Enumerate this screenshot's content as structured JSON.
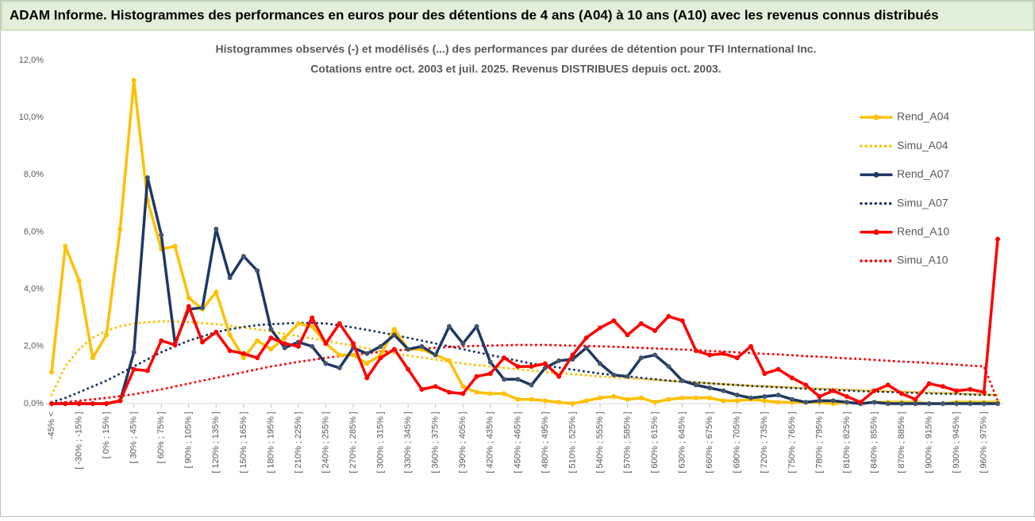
{
  "header": {
    "title": "ADAM Informe. Histogrammes des performances en euros pour des détentions de 4 ans (A04) à 10 ans (A10) avec les revenus connus distribués"
  },
  "chart_data": {
    "type": "line",
    "title": "Histogrammes observés (-) et modélisés (...) des performances par durées de détention pour TFI International Inc.",
    "subtitle": "Cotations entre oct. 2003 et juil. 2025. Revenus DISTRIBUES depuis oct. 2003.",
    "categories": [
      "-45% <",
      null,
      "[ -30% ; -15% ]",
      null,
      "[ 0% ; 15% ]",
      null,
      "[ 30% ; 45% ]",
      null,
      "[ 60% ; 75% ]",
      null,
      "[ 90% ; 105% ]",
      null,
      "[ 120% ; 135% ]",
      null,
      "[ 150% ; 165% ]",
      null,
      "[ 180% ; 195% ]",
      null,
      "[ 210% ; 225% ]",
      null,
      "[ 240% ; 255% ]",
      null,
      "[ 270% ; 285% ]",
      null,
      "[ 300% ; 315% ]",
      null,
      "[ 330% ; 345% ]",
      null,
      "[ 360% ; 375% ]",
      null,
      "[ 390% ; 405% ]",
      null,
      "[ 420% ; 435% ]",
      null,
      "[ 450% ; 465% ]",
      null,
      "[ 480% ; 495% ]",
      null,
      "[ 510% ; 525% ]",
      null,
      "[ 540% ; 555% ]",
      null,
      "[ 570% ; 585% ]",
      null,
      "[ 600% ; 615% ]",
      null,
      "[ 630% ; 645% ]",
      null,
      "[ 660% ; 675% ]",
      null,
      "[ 690% ; 705% ]",
      null,
      "[ 720% ; 735% ]",
      null,
      "[ 750% ; 765% ]",
      null,
      "[ 780% ; 795% ]",
      null,
      "[ 810% ; 825% ]",
      null,
      "[ 840% ; 855% ]",
      null,
      "[ 870% ; 885% ]",
      null,
      "[ 900% ; 915% ]",
      null,
      "[ 930% ; 945% ]",
      null,
      "[ 960% ; 975% ]",
      null
    ],
    "series": [
      {
        "name": "Rend_A04",
        "color": "#ffc000",
        "style": "solid",
        "markers": true,
        "values": [
          1.1,
          5.5,
          4.3,
          1.6,
          2.4,
          6.1,
          11.3,
          7.1,
          5.4,
          5.5,
          3.7,
          3.3,
          3.9,
          2.4,
          1.6,
          2.2,
          1.9,
          2.3,
          2.8,
          2.7,
          2.1,
          1.7,
          1.7,
          1.4,
          1.7,
          2.6,
          1.9,
          1.9,
          1.7,
          1.5,
          0.6,
          0.4,
          0.35,
          0.35,
          0.15,
          0.15,
          0.1,
          0.05,
          0,
          0.1,
          0.2,
          0.25,
          0.15,
          0.2,
          0.05,
          0.15,
          0.2,
          0.2,
          0.2,
          0.1,
          0.1,
          0.15,
          0.1,
          0.05,
          0.05,
          0.05,
          0.05,
          0,
          0.05,
          0,
          0.05,
          0.05,
          0.05,
          0.05,
          0,
          0,
          0.05,
          0.05,
          0.05,
          0.05
        ]
      },
      {
        "name": "Simu_A04",
        "color": "#ffc000",
        "style": "dotted",
        "markers": false,
        "values": [
          0.3,
          1.3,
          1.9,
          2.3,
          2.55,
          2.7,
          2.8,
          2.85,
          2.87,
          2.87,
          2.85,
          2.82,
          2.78,
          2.72,
          2.66,
          2.6,
          2.52,
          2.44,
          2.36,
          2.28,
          2.2,
          2.11,
          2.02,
          1.93,
          1.84,
          1.75,
          1.68,
          1.61,
          1.54,
          1.47,
          1.4,
          1.35,
          1.3,
          1.25,
          1.2,
          1.15,
          1.11,
          1.07,
          1.03,
          0.99,
          0.95,
          0.92,
          0.89,
          0.86,
          0.83,
          0.8,
          0.77,
          0.74,
          0.71,
          0.68,
          0.65,
          0.63,
          0.61,
          0.59,
          0.57,
          0.55,
          0.53,
          0.51,
          0.49,
          0.47,
          0.45,
          0.44,
          0.42,
          0.41,
          0.39,
          0.38,
          0.36,
          0.34,
          0.32,
          0.3
        ]
      },
      {
        "name": "Rend_A07",
        "color": "#1f3864",
        "style": "solid",
        "markers": true,
        "values": [
          0,
          0,
          0,
          0,
          0,
          0.1,
          1.8,
          7.9,
          5.9,
          2.1,
          3.3,
          3.35,
          6.1,
          4.4,
          5.15,
          4.65,
          2.6,
          1.95,
          2.15,
          2.0,
          1.4,
          1.25,
          1.95,
          1.75,
          2.0,
          2.4,
          1.9,
          2.0,
          1.7,
          2.7,
          2.1,
          2.7,
          1.45,
          0.85,
          0.85,
          0.65,
          1.25,
          1.5,
          1.55,
          1.95,
          1.4,
          1.0,
          0.95,
          1.6,
          1.7,
          1.3,
          0.8,
          0.65,
          0.55,
          0.45,
          0.3,
          0.2,
          0.25,
          0.3,
          0.15,
          0.05,
          0.1,
          0.1,
          0.05,
          0,
          0.05,
          0,
          0,
          0,
          0,
          0,
          0,
          0,
          0,
          0
        ]
      },
      {
        "name": "Simu_A07",
        "color": "#1f3864",
        "style": "dotted",
        "markers": false,
        "values": [
          0.05,
          0.2,
          0.4,
          0.6,
          0.8,
          1.05,
          1.3,
          1.55,
          1.8,
          2.0,
          2.2,
          2.35,
          2.5,
          2.6,
          2.68,
          2.74,
          2.78,
          2.8,
          2.82,
          2.82,
          2.8,
          2.74,
          2.66,
          2.58,
          2.49,
          2.4,
          2.3,
          2.2,
          2.1,
          2.0,
          1.9,
          1.8,
          1.7,
          1.6,
          1.5,
          1.4,
          1.33,
          1.26,
          1.19,
          1.12,
          1.05,
          1.0,
          0.95,
          0.9,
          0.85,
          0.8,
          0.77,
          0.74,
          0.71,
          0.68,
          0.65,
          0.62,
          0.6,
          0.57,
          0.55,
          0.52,
          0.5,
          0.48,
          0.46,
          0.44,
          0.42,
          0.41,
          0.39,
          0.38,
          0.36,
          0.35,
          0.34,
          0.32,
          0.31,
          0.3
        ]
      },
      {
        "name": "Rend_A10",
        "color": "#ff0000",
        "style": "solid",
        "markers": true,
        "values": [
          0,
          0,
          0,
          0,
          0,
          0.1,
          1.2,
          1.15,
          2.2,
          2.05,
          3.4,
          2.15,
          2.5,
          1.85,
          1.75,
          1.6,
          2.3,
          2.1,
          2.0,
          3.0,
          2.1,
          2.8,
          2.1,
          0.9,
          1.6,
          1.9,
          1.2,
          0.5,
          0.6,
          0.4,
          0.35,
          0.95,
          1.05,
          1.6,
          1.3,
          1.3,
          1.4,
          0.95,
          1.7,
          2.3,
          2.65,
          2.9,
          2.4,
          2.8,
          2.55,
          3.05,
          2.9,
          1.85,
          1.7,
          1.75,
          1.6,
          2.0,
          1.05,
          1.2,
          0.9,
          0.65,
          0.25,
          0.45,
          0.25,
          0.05,
          0.45,
          0.65,
          0.35,
          0.15,
          0.7,
          0.6,
          0.45,
          0.5,
          0.4,
          5.75
        ]
      },
      {
        "name": "Simu_A10",
        "color": "#ff0000",
        "style": "dotted",
        "markers": false,
        "values": [
          0,
          0.05,
          0.1,
          0.15,
          0.2,
          0.26,
          0.33,
          0.41,
          0.5,
          0.6,
          0.7,
          0.8,
          0.9,
          1.0,
          1.1,
          1.2,
          1.3,
          1.38,
          1.46,
          1.53,
          1.6,
          1.66,
          1.71,
          1.76,
          1.81,
          1.85,
          1.89,
          1.92,
          1.95,
          1.98,
          2.0,
          2.02,
          2.03,
          2.04,
          2.05,
          2.05,
          2.05,
          2.04,
          2.03,
          2.02,
          2.0,
          1.99,
          1.97,
          1.95,
          1.93,
          1.91,
          1.89,
          1.87,
          1.84,
          1.82,
          1.79,
          1.77,
          1.74,
          1.72,
          1.69,
          1.66,
          1.64,
          1.61,
          1.58,
          1.56,
          1.53,
          1.5,
          1.47,
          1.45,
          1.42,
          1.39,
          1.36,
          1.33,
          1.3,
          0.1
        ]
      }
    ],
    "ylim": [
      0,
      12
    ],
    "yticks": [
      {
        "value": 0,
        "label": "0,0%"
      },
      {
        "value": 2,
        "label": "2,0%"
      },
      {
        "value": 4,
        "label": "4,0%"
      },
      {
        "value": 6,
        "label": "6,0%"
      },
      {
        "value": 8,
        "label": "8,0%"
      },
      {
        "value": 10,
        "label": "10,0%"
      },
      {
        "value": 12,
        "label": "12,0%"
      }
    ],
    "grid": false,
    "legend": "right"
  }
}
